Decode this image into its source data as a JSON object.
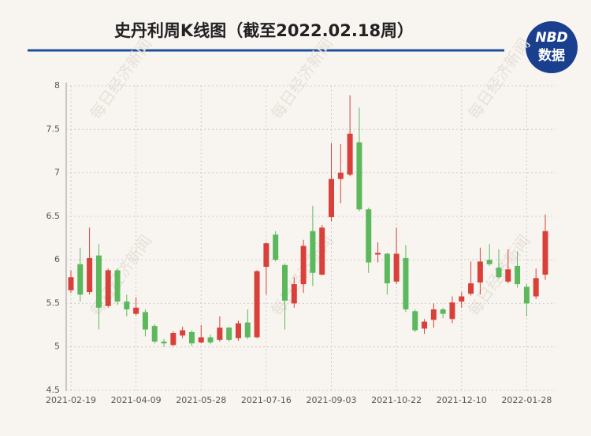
{
  "chart_data": {
    "type": "candlestick",
    "title": "史丹利周K线图（截至2022.02.18周）",
    "logo": {
      "top": "NBD",
      "bottom": "数据"
    },
    "watermark": "每日经济新闻",
    "categories": [
      "2021-02-19",
      null,
      null,
      null,
      null,
      null,
      null,
      "2021-04-09",
      null,
      null,
      null,
      null,
      null,
      null,
      "2021-05-28",
      null,
      null,
      null,
      null,
      null,
      null,
      "2021-07-16",
      null,
      null,
      null,
      null,
      null,
      null,
      "2021-09-03",
      null,
      null,
      null,
      null,
      null,
      null,
      "2021-10-22",
      null,
      null,
      null,
      null,
      null,
      null,
      "2021-12-10",
      null,
      null,
      null,
      null,
      null,
      null,
      "2022-01-28",
      null,
      null
    ],
    "open": [
      5.65,
      5.95,
      5.63,
      6.05,
      5.47,
      5.88,
      5.52,
      5.38,
      5.4,
      5.24,
      5.06,
      5.02,
      5.13,
      5.17,
      5.05,
      5.11,
      5.08,
      5.22,
      5.1,
      5.28,
      5.11,
      5.92,
      6.29,
      5.94,
      5.5,
      5.72,
      6.33,
      5.83,
      6.49,
      6.93,
      6.98,
      7.35,
      6.58,
      6.06,
      6.07,
      5.75,
      6.02,
      5.41,
      5.21,
      5.31,
      5.43,
      5.32,
      5.52,
      5.61,
      5.74,
      6.0,
      5.91,
      5.75,
      5.93,
      5.69,
      5.58,
      5.83
    ],
    "high": [
      5.88,
      6.14,
      6.37,
      6.18,
      5.9,
      5.9,
      5.6,
      5.57,
      5.43,
      5.26,
      5.09,
      5.18,
      5.23,
      5.19,
      5.25,
      5.14,
      5.35,
      5.23,
      5.3,
      5.43,
      5.88,
      6.2,
      6.33,
      5.96,
      5.8,
      6.23,
      6.62,
      6.4,
      7.34,
      7.33,
      7.89,
      7.75,
      6.6,
      6.2,
      6.08,
      6.37,
      6.17,
      5.43,
      5.32,
      5.5,
      5.45,
      5.58,
      5.63,
      5.98,
      6.14,
      6.18,
      6.12,
      6.12,
      6.1,
      5.72,
      5.9,
      6.52
    ],
    "low": [
      5.62,
      5.52,
      5.6,
      5.2,
      5.45,
      5.48,
      5.35,
      5.36,
      5.12,
      5.04,
      5.0,
      5.01,
      5.1,
      5.01,
      5.04,
      5.03,
      5.06,
      5.06,
      5.07,
      5.09,
      5.1,
      5.6,
      5.98,
      5.2,
      5.45,
      5.62,
      5.7,
      5.82,
      6.44,
      6.65,
      6.96,
      6.56,
      5.85,
      5.97,
      5.6,
      5.72,
      5.4,
      5.17,
      5.15,
      5.22,
      5.33,
      5.27,
      5.45,
      5.59,
      5.6,
      5.93,
      5.78,
      5.73,
      5.68,
      5.35,
      5.55,
      5.77
    ],
    "close": [
      5.8,
      5.6,
      6.02,
      5.45,
      5.88,
      5.52,
      5.43,
      5.45,
      5.2,
      5.06,
      5.04,
      5.16,
      5.19,
      5.04,
      5.11,
      5.05,
      5.22,
      5.08,
      5.27,
      5.11,
      5.87,
      6.19,
      6.0,
      5.53,
      5.72,
      6.16,
      5.85,
      6.37,
      6.93,
      7.0,
      7.45,
      6.58,
      5.97,
      6.08,
      5.73,
      6.07,
      5.43,
      5.19,
      5.29,
      5.43,
      5.38,
      5.51,
      5.58,
      5.73,
      5.98,
      5.95,
      5.8,
      5.89,
      5.72,
      5.5,
      5.79,
      6.33
    ],
    "up_color": "#d9403a",
    "down_color": "#5cb85c",
    "ylim": [
      4.5,
      8
    ],
    "yticks": [
      4.5,
      5,
      5.5,
      6,
      6.5,
      7,
      7.5,
      8
    ],
    "grid": true
  }
}
